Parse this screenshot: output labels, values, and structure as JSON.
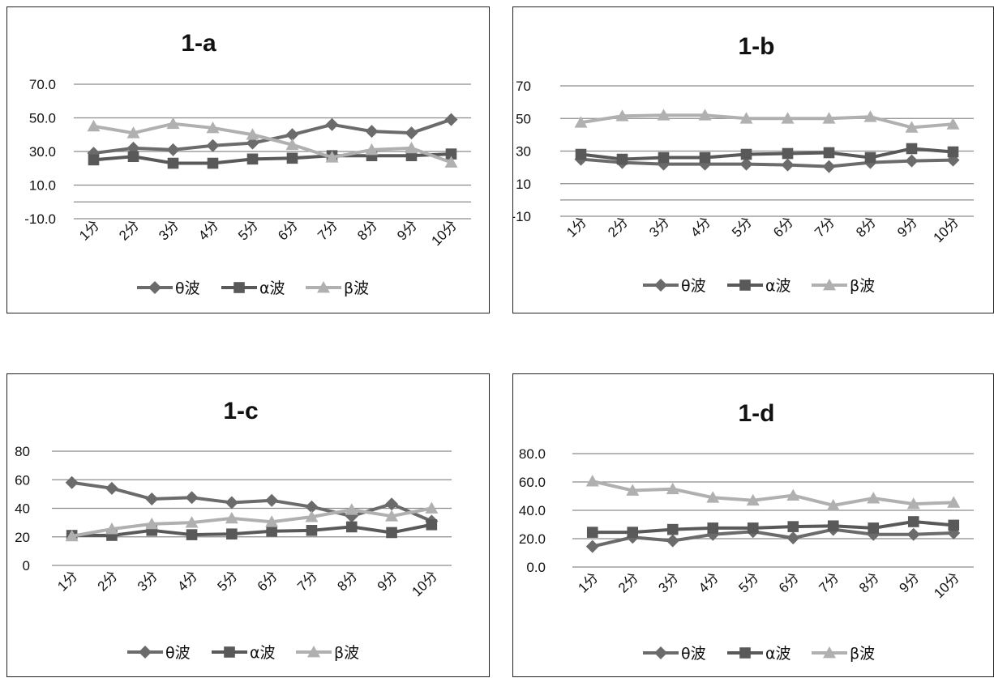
{
  "colors": {
    "theta": "#6b6b6b",
    "alpha": "#595959",
    "beta": "#b0b0b0",
    "grid": "#8c8c8c"
  },
  "chart_data": [
    {
      "type": "line",
      "title": "1-a",
      "categories": [
        "1分",
        "2分",
        "3分",
        "4分",
        "5分",
        "6分",
        "7分",
        "8分",
        "9分",
        "10分"
      ],
      "ylim": [
        -10,
        70
      ],
      "yticks": [
        -10.0,
        10.0,
        30.0,
        50.0,
        70.0
      ],
      "ytick_labels": [
        "-10.0",
        "10.0",
        "30.0",
        "50.0",
        "70.0"
      ],
      "extra_gridlines": [
        0
      ],
      "grid": true,
      "legend": "bottom",
      "series": [
        {
          "name": "θ波",
          "marker": "diamond",
          "values": [
            29,
            32,
            31,
            33.5,
            35,
            40,
            46,
            42,
            41,
            49
          ]
        },
        {
          "name": "α波",
          "marker": "square",
          "values": [
            25,
            27,
            23,
            23,
            25.5,
            26,
            27.5,
            27.5,
            27.5,
            28.5
          ]
        },
        {
          "name": "β波",
          "marker": "triangle",
          "values": [
            45,
            41,
            46.5,
            44,
            40,
            34,
            26.5,
            31,
            32,
            23.5
          ]
        }
      ]
    },
    {
      "type": "line",
      "title": "1-b",
      "categories": [
        "1分",
        "2分",
        "3分",
        "4分",
        "5分",
        "6分",
        "7分",
        "8分",
        "9分",
        "10分"
      ],
      "ylim": [
        -10,
        70
      ],
      "yticks": [
        -10,
        10,
        30,
        50,
        70
      ],
      "ytick_labels": [
        "-10",
        "10",
        "30",
        "50",
        "70"
      ],
      "extra_gridlines": [
        0
      ],
      "grid": true,
      "legend": "bottom",
      "series": [
        {
          "name": "θ波",
          "marker": "diamond",
          "values": [
            25,
            23,
            22,
            22,
            22,
            21.5,
            20.5,
            23,
            24,
            24.5
          ]
        },
        {
          "name": "α波",
          "marker": "square",
          "values": [
            28,
            25,
            26,
            26,
            28,
            28.5,
            29,
            26,
            31.5,
            29.5
          ]
        },
        {
          "name": "β波",
          "marker": "triangle",
          "values": [
            47.5,
            51.5,
            52,
            52,
            50,
            50,
            50,
            51,
            44.5,
            46.5
          ]
        }
      ]
    },
    {
      "type": "line",
      "title": "1-c",
      "categories": [
        "1分",
        "2分",
        "3分",
        "4分",
        "5分",
        "6分",
        "7分",
        "8分",
        "9分",
        "10分"
      ],
      "ylim": [
        0,
        80
      ],
      "yticks": [
        0,
        20,
        40,
        60,
        80
      ],
      "ytick_labels": [
        "0",
        "20",
        "40",
        "60",
        "80"
      ],
      "extra_gridlines": [],
      "grid": true,
      "legend": "bottom",
      "series": [
        {
          "name": "θ波",
          "marker": "diamond",
          "values": [
            58,
            54,
            46.5,
            47.5,
            44,
            45.5,
            41,
            34.5,
            43,
            31
          ]
        },
        {
          "name": "α波",
          "marker": "square",
          "values": [
            21,
            21,
            24.5,
            21.5,
            22,
            24,
            24.5,
            27,
            23,
            28.5
          ]
        },
        {
          "name": "β波",
          "marker": "triangle",
          "values": [
            20.5,
            25.5,
            29,
            30,
            33,
            30.5,
            34,
            39,
            34.5,
            40
          ]
        }
      ]
    },
    {
      "type": "line",
      "title": "1-d",
      "categories": [
        "1分",
        "2分",
        "3分",
        "4分",
        "5分",
        "6分",
        "7分",
        "8分",
        "9分",
        "10分"
      ],
      "ylim": [
        0,
        80
      ],
      "yticks": [
        0.0,
        20.0,
        40.0,
        60.0,
        80.0
      ],
      "ytick_labels": [
        "0.0",
        "20.0",
        "40.0",
        "60.0",
        "80.0"
      ],
      "extra_gridlines": [],
      "grid": true,
      "legend": "bottom",
      "series": [
        {
          "name": "θ波",
          "marker": "diamond",
          "values": [
            14.5,
            21,
            18.5,
            23,
            25,
            20.5,
            26.5,
            23,
            23,
            24
          ]
        },
        {
          "name": "α波",
          "marker": "square",
          "values": [
            24.5,
            24.5,
            26.5,
            27.5,
            27.5,
            28.5,
            29,
            27.5,
            32,
            29.5
          ]
        },
        {
          "name": "β波",
          "marker": "triangle",
          "values": [
            60.5,
            54,
            55,
            49,
            47,
            50.5,
            43.5,
            48.5,
            44.5,
            45.5
          ]
        }
      ]
    }
  ]
}
